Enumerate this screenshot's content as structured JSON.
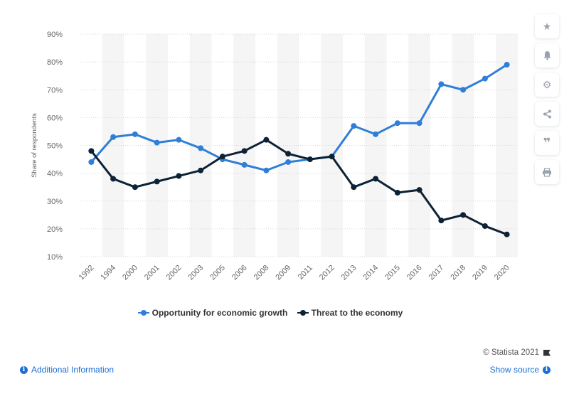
{
  "chart_data": {
    "type": "line",
    "ylabel": "Share of respondents",
    "categories": [
      "1992",
      "1994",
      "2000",
      "2001",
      "2002",
      "2003",
      "2005",
      "2006",
      "2008",
      "2009",
      "2011",
      "2012",
      "2013",
      "2014",
      "2015",
      "2016",
      "2017",
      "2018",
      "2019",
      "2020"
    ],
    "ylim": [
      10,
      90
    ],
    "yticks": [
      "10%",
      "20%",
      "30%",
      "40%",
      "50%",
      "60%",
      "70%",
      "80%",
      "90%"
    ],
    "grid": true,
    "legend_position": "bottom",
    "series": [
      {
        "name": "Opportunity for economic growth",
        "color": "#2f7ed8",
        "values": [
          44,
          53,
          54,
          51,
          52,
          49,
          45,
          43,
          41,
          44,
          45,
          46,
          57,
          54,
          58,
          58,
          72,
          70,
          74,
          79
        ]
      },
      {
        "name": "Threat to the economy",
        "color": "#0d2235",
        "values": [
          48,
          38,
          35,
          37,
          39,
          41,
          46,
          48,
          52,
          47,
          45,
          46,
          35,
          38,
          33,
          34,
          23,
          25,
          21,
          18
        ]
      }
    ]
  },
  "toolbar": {
    "icons": [
      "star-icon",
      "bell-icon",
      "gear-icon",
      "share-icon",
      "quote-icon",
      "print-icon"
    ]
  },
  "footer": {
    "credit": "© Statista 2021",
    "additional_info": "Additional Information",
    "show_source": "Show source"
  }
}
